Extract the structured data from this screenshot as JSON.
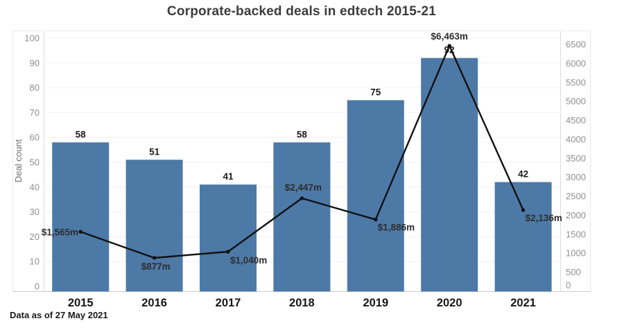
{
  "title": "Corporate-backed deals in edtech 2015-21",
  "footer_note": "Data as of 27 May 2021",
  "colors": {
    "bar": "#4d79a7",
    "line": "#111111",
    "title_text": "#3c3c3c",
    "axis_tick_text": "#8f8f8f",
    "value_label_text": "#1a1a1a",
    "dollar_label_text": "#2e2e2e"
  },
  "chart_data": {
    "type": "bar",
    "subtype": "combo-bar-line-dual-axis",
    "title": "Corporate-backed deals in edtech 2015-21",
    "categories": [
      "2015",
      "2016",
      "2017",
      "2018",
      "2019",
      "2020",
      "2021"
    ],
    "series": [
      {
        "name": "Deal count",
        "chart": "bar",
        "axis": "left",
        "values": [
          58,
          51,
          41,
          58,
          75,
          92,
          42
        ]
      },
      {
        "name": "Deal value",
        "chart": "line",
        "axis": "right",
        "values": [
          1565,
          877,
          1040,
          2447,
          1886,
          6463,
          2136
        ],
        "point_labels": [
          "$1,565m",
          "$877m",
          "$1,040m",
          "$2,447m",
          "$1,886m",
          "$6,463m",
          "$2,136m"
        ]
      }
    ],
    "left_axis": {
      "title": "Deal count",
      "range": [
        0,
        100
      ],
      "ticks": [
        0,
        10,
        20,
        30,
        40,
        50,
        60,
        70,
        80,
        90,
        100
      ]
    },
    "right_axis": {
      "title": "",
      "range": [
        0,
        6500
      ],
      "ticks": [
        0,
        500,
        1000,
        1500,
        2000,
        2500,
        3000,
        3500,
        4000,
        4500,
        5000,
        5500,
        6000,
        6500
      ]
    },
    "grid": true,
    "legend": "none",
    "note": "Data as of 27 May 2021"
  }
}
